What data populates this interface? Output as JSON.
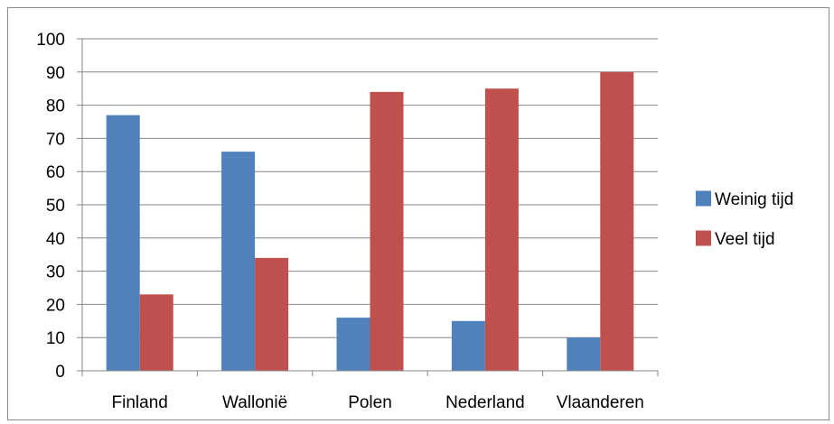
{
  "chart_data": {
    "type": "bar",
    "title": "",
    "xlabel": "",
    "ylabel": "",
    "categories": [
      "Finland",
      "Wallonië",
      "Polen",
      "Nederland",
      "Vlaanderen"
    ],
    "series": [
      {
        "name": "Weinig tijd",
        "values": [
          77,
          66,
          16,
          15,
          10
        ],
        "color": "#4f81bd"
      },
      {
        "name": "Veel tijd",
        "values": [
          23,
          34,
          84,
          85,
          90
        ],
        "color": "#c0504d"
      }
    ],
    "ylim": [
      0,
      100
    ],
    "yticks": [
      "0",
      "10",
      "20",
      "30",
      "40",
      "50",
      "60",
      "70",
      "80",
      "90",
      "100"
    ],
    "grid": true,
    "legend_position": "right"
  }
}
